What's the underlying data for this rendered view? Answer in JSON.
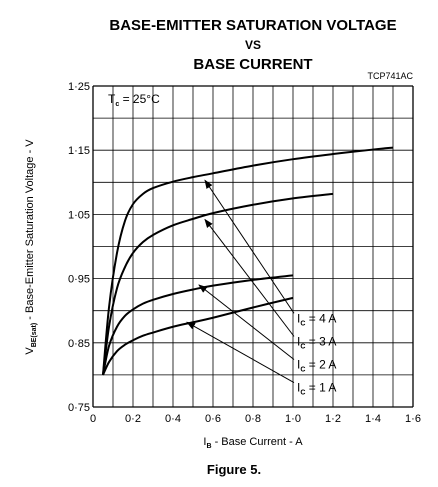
{
  "chart_data": {
    "type": "line",
    "title_lines": [
      "BASE-EMITTER SATURATION VOLTAGE",
      "VS",
      "BASE CURRENT"
    ],
    "code": "TCP741AC",
    "condition": {
      "main": "T",
      "sub": "c",
      "rest": " = 25°C"
    },
    "xlabel": {
      "main": "I",
      "sub": "B",
      "rest": " - Base Current - A"
    },
    "ylabel": {
      "main": "V",
      "sub": "BE(sat)",
      "rest": " - Base-Emitter Saturation Voltage - V"
    },
    "caption": "Figure 5.",
    "xlim": [
      0,
      1.6
    ],
    "ylim": [
      0.75,
      1.25
    ],
    "x_ticks": [
      {
        "value": 0,
        "label": "0"
      },
      {
        "value": 0.2,
        "label": "0·2"
      },
      {
        "value": 0.4,
        "label": "0·4"
      },
      {
        "value": 0.6,
        "label": "0·6"
      },
      {
        "value": 0.8,
        "label": "0·8"
      },
      {
        "value": 1.0,
        "label": "1·0"
      },
      {
        "value": 1.2,
        "label": "1·2"
      },
      {
        "value": 1.4,
        "label": "1·4"
      },
      {
        "value": 1.6,
        "label": "1·6"
      }
    ],
    "y_ticks": [
      {
        "value": 0.75,
        "label": "0·75"
      },
      {
        "value": 0.85,
        "label": "0·85"
      },
      {
        "value": 0.95,
        "label": "0·95"
      },
      {
        "value": 1.05,
        "label": "1·05"
      },
      {
        "value": 1.15,
        "label": "1·15"
      },
      {
        "value": 1.25,
        "label": "1·25"
      }
    ],
    "grid": true,
    "series": [
      {
        "name": "I_C = 4 A",
        "label": {
          "main": "I",
          "sub": "C",
          "rest": " = 4 A"
        },
        "label_pos": [
          1.02,
          0.882
        ],
        "arrow_to": [
          0.56,
          1.103
        ],
        "x": [
          0.05,
          0.08,
          0.12,
          0.16,
          0.2,
          0.25,
          0.3,
          0.4,
          0.5,
          0.6,
          0.8,
          1.0,
          1.2,
          1.4,
          1.5
        ],
        "y": [
          0.8,
          0.905,
          0.99,
          1.04,
          1.066,
          1.082,
          1.091,
          1.101,
          1.108,
          1.114,
          1.126,
          1.136,
          1.144,
          1.151,
          1.154
        ]
      },
      {
        "name": "I_C = 3 A",
        "label": {
          "main": "I",
          "sub": "C",
          "rest": " = 3 A"
        },
        "label_pos": [
          1.02,
          0.846
        ],
        "arrow_to": [
          0.56,
          1.042
        ],
        "x": [
          0.05,
          0.08,
          0.12,
          0.16,
          0.2,
          0.25,
          0.3,
          0.4,
          0.5,
          0.6,
          0.8,
          1.0,
          1.2
        ],
        "y": [
          0.8,
          0.875,
          0.935,
          0.968,
          0.99,
          1.007,
          1.018,
          1.033,
          1.043,
          1.052,
          1.065,
          1.075,
          1.082
        ]
      },
      {
        "name": "I_C = 2 A",
        "label": {
          "main": "I",
          "sub": "C",
          "rest": " = 2 A"
        },
        "label_pos": [
          1.02,
          0.81
        ],
        "arrow_to": [
          0.53,
          0.94
        ],
        "x": [
          0.05,
          0.08,
          0.12,
          0.16,
          0.2,
          0.25,
          0.3,
          0.4,
          0.5,
          0.6,
          0.8,
          1.0
        ],
        "y": [
          0.8,
          0.845,
          0.875,
          0.892,
          0.902,
          0.911,
          0.917,
          0.926,
          0.933,
          0.939,
          0.948,
          0.955
        ]
      },
      {
        "name": "I_C = 1 A",
        "label": {
          "main": "I",
          "sub": "C",
          "rest": " = 1 A"
        },
        "label_pos": [
          1.02,
          0.774
        ],
        "arrow_to": [
          0.47,
          0.882
        ],
        "x": [
          0.05,
          0.08,
          0.12,
          0.16,
          0.2,
          0.25,
          0.3,
          0.4,
          0.5,
          0.6,
          0.8,
          1.0
        ],
        "y": [
          0.8,
          0.82,
          0.837,
          0.847,
          0.854,
          0.861,
          0.866,
          0.875,
          0.882,
          0.889,
          0.905,
          0.92
        ]
      }
    ]
  }
}
